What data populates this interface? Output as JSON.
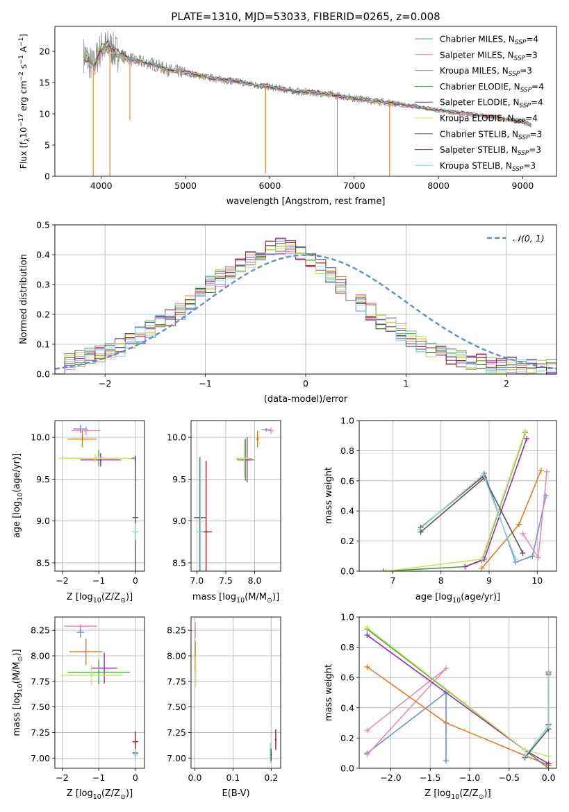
{
  "figure": {
    "title": "PLATE=1310, MJD=53033, FIBERID=0265, z=0.008"
  },
  "palette": {
    "Chabrier MILES": "#6a8fd8",
    "Salpeter MILES": "#e58ab8",
    "Kroupa MILES": "#b8a040",
    "Chabrier ELODIE": "#4d9a4d",
    "Salpeter ELODIE": "#8e2fae",
    "Kroupa ELODIE": "#cbe65a",
    "Chabrier STELIB": "#555555",
    "Salpeter STELIB": "#a31f2a",
    "Kroupa STELIB": "#85d6d6",
    "orange": "#e07b20",
    "gauss": "#5b8dd6"
  },
  "chart_data": [
    {
      "id": "spectrum",
      "type": "line",
      "title": "PLATE=1310, MJD=53033, FIBERID=0265, z=0.008",
      "xlabel": "wavelength [Angstrom, rest frame]",
      "ylabel_main": "Flux [f",
      "ylabel_sub": "λ",
      "ylabel_tail": "10",
      "ylabel_exp1": "−17",
      "ylabel_mid": " erg cm",
      "ylabel_exp2": "−2",
      "ylabel_mid2": " s",
      "ylabel_exp3": "−1",
      "ylabel_end": " A",
      "ylabel_exp4": "−1",
      "ylabel_close": "]",
      "xlim": [
        3450,
        9400
      ],
      "ylim": [
        0,
        24
      ],
      "xticks": [
        4000,
        5000,
        6000,
        7000,
        8000,
        9000
      ],
      "yticks": [
        0,
        5,
        10,
        15,
        20
      ],
      "legend_position": "upper right",
      "legend": [
        {
          "name": "Chabrier MILES",
          "n": "4"
        },
        {
          "name": "Salpeter MILES",
          "n": "3"
        },
        {
          "name": "Kroupa MILES",
          "n": "3"
        },
        {
          "name": "Chabrier ELODIE",
          "n": "4"
        },
        {
          "name": "Salpeter ELODIE",
          "n": "4"
        },
        {
          "name": "Kroupa ELODIE",
          "n": "4"
        },
        {
          "name": "Chabrier STELIB",
          "n": "3"
        },
        {
          "name": "Salpeter STELIB",
          "n": "3"
        },
        {
          "name": "Kroupa STELIB",
          "n": "3"
        }
      ],
      "legend_label_prefix": "N",
      "legend_label_sub": "SSP",
      "continuum": {
        "x": [
          3800,
          3900,
          4000,
          4100,
          4200,
          4400,
          4600,
          4800,
          5000,
          5200,
          5400,
          5600,
          5800,
          6000,
          6300,
          6600,
          7000,
          7400,
          7800,
          8200,
          8600,
          9000,
          9100
        ],
        "y": [
          19.5,
          17.5,
          20.5,
          20.8,
          19.5,
          18.5,
          18.0,
          17.0,
          16.6,
          16.0,
          15.5,
          15.2,
          14.7,
          14.3,
          13.6,
          13.3,
          12.5,
          11.8,
          11.0,
          10.2,
          9.6,
          8.7,
          8.2
        ]
      },
      "absorption_lines": [
        {
          "x": 3905,
          "depth_to": 0
        },
        {
          "x": 4102,
          "depth_to": 0
        },
        {
          "x": 4340,
          "depth_to": 9
        },
        {
          "x": 5950,
          "depth_to": 0.5
        },
        {
          "x": 6800,
          "depth_to": 0
        },
        {
          "x": 7420,
          "depth_to": 0
        }
      ]
    },
    {
      "id": "residuals",
      "type": "line",
      "xlabel": "(data-model)/error",
      "ylabel": "Normed distribution",
      "xlim": [
        -2.5,
        2.5
      ],
      "ylim": [
        0,
        0.5
      ],
      "xticks": [
        -2,
        -1,
        0,
        1,
        2
      ],
      "yticks": [
        0.0,
        0.1,
        0.2,
        0.3,
        0.4,
        0.5
      ],
      "grid": true,
      "legend_position": "upper right",
      "legend_label": "𝒩(0, 1)",
      "bin_width": 0.1,
      "histogram_ref": [
        0.03,
        0.04,
        0.05,
        0.06,
        0.07,
        0.08,
        0.09,
        0.11,
        0.13,
        0.15,
        0.17,
        0.19,
        0.21,
        0.24,
        0.27,
        0.3,
        0.32,
        0.34,
        0.36,
        0.38,
        0.4,
        0.42,
        0.43,
        0.42,
        0.4,
        0.38,
        0.36,
        0.33,
        0.3,
        0.27,
        0.24,
        0.21,
        0.18,
        0.16,
        0.14,
        0.12,
        0.1,
        0.08,
        0.07,
        0.06,
        0.05,
        0.04,
        0.04,
        0.03,
        0.03,
        0.03,
        0.02,
        0.02,
        0.02,
        0.02
      ]
    },
    {
      "id": "age_vs_Z",
      "type": "scatter",
      "xlabel": "Z [log",
      "xlabel_sub": "10",
      "xlabel_rest": "(Z/Z",
      "xlabel_sun": "⊙",
      "xlabel_end": ")]",
      "ylabel": "age  [log",
      "ylabel_sub": "10",
      "ylabel_rest": "(age/yr)]",
      "xlim": [
        -2.2,
        0.25
      ],
      "ylim": [
        8.4,
        10.2
      ],
      "xticks": [
        -2,
        -1,
        0
      ],
      "yticks": [
        8.5,
        9.0,
        9.5,
        10.0
      ],
      "grid": true,
      "points": [
        {
          "color": "#6a8fd8",
          "x": -1.5,
          "y": 10.1,
          "xerr": 0.2,
          "yerr": 0.05
        },
        {
          "color": "#e58ab8",
          "x": -1.35,
          "y": 10.08,
          "xerr": 0.4,
          "yerr": 0.05
        },
        {
          "color": "#e07b20",
          "x": -1.45,
          "y": 9.98,
          "xerr": 0.4,
          "yerr": 0.1
        },
        {
          "color": "#4d9a4d",
          "x": -1.0,
          "y": 9.75,
          "xerr": 1.0,
          "yerr": 0.1
        },
        {
          "color": "#8e2fae",
          "x": -0.95,
          "y": 9.73,
          "xerr": 0.55,
          "yerr": 0.08
        },
        {
          "color": "#cbe65a",
          "x": -1.1,
          "y": 9.75,
          "xerr": 1.0,
          "yerr": 0.05
        },
        {
          "color": "#555555",
          "x": 0.0,
          "y": 9.04,
          "xerr": 0.08,
          "yerr": 0.72
        },
        {
          "color": "#85d6d6",
          "x": 0.0,
          "y": 8.87,
          "xerr": 0.08,
          "yerr": 0.1
        },
        {
          "color": "#555555",
          "x": 0.0,
          "y": 9.73,
          "xerr": 0.0,
          "yerr": 0.05
        }
      ]
    },
    {
      "id": "age_vs_mass",
      "type": "scatter",
      "xlabel": "mass [log",
      "xlabel_sub": "10",
      "xlabel_rest": "(M/M",
      "xlabel_sun": "⊙",
      "xlabel_end": ")]",
      "xlim": [
        6.9,
        8.45
      ],
      "ylim": [
        8.4,
        10.2
      ],
      "xticks": [
        7.0,
        7.5,
        8.0
      ],
      "yticks": [
        8.5,
        9.0,
        9.5,
        10.0
      ],
      "grid": true,
      "points": [
        {
          "color": "#6a8fd8",
          "x": 8.2,
          "y": 10.09,
          "xerr": 0.08,
          "yerr": 0.02
        },
        {
          "color": "#e58ab8",
          "x": 8.28,
          "y": 10.08,
          "xerr": 0.05,
          "yerr": 0.04
        },
        {
          "color": "#e07b20",
          "x": 8.05,
          "y": 9.98,
          "xerr": 0.03,
          "yerr": 0.1
        },
        {
          "color": "#4d9a4d",
          "x": 7.84,
          "y": 9.73,
          "xerr": 0.15,
          "yerr": 0.25
        },
        {
          "color": "#8e2fae",
          "x": 7.87,
          "y": 9.73,
          "xerr": 0.1,
          "yerr": 0.27
        },
        {
          "color": "#cbe65a",
          "x": 7.82,
          "y": 9.75,
          "xerr": 0.14,
          "yerr": 0.23
        },
        {
          "color": "#555555",
          "x": 7.05,
          "y": 9.04,
          "xerr": 0.1,
          "yerr": 0.72
        },
        {
          "color": "#a31f2a",
          "x": 7.16,
          "y": 8.87,
          "xerr": 0.1,
          "yerr": 0.85
        },
        {
          "color": "#85d6d6",
          "x": 7.06,
          "y": 8.87,
          "xerr": 0.05,
          "yerr": 0.9
        }
      ]
    },
    {
      "id": "massweight_vs_age",
      "type": "line",
      "xlabel": "age  [log",
      "xlabel_sub": "10",
      "xlabel_rest": "(age/yr)]",
      "ylabel": "mass weight",
      "xlim": [
        6.3,
        10.4
      ],
      "ylim": [
        0,
        1.0
      ],
      "xticks": [
        7,
        8,
        9,
        10
      ],
      "yticks": [
        0.0,
        0.2,
        0.4,
        0.6,
        0.8,
        1.0
      ],
      "grid": true,
      "series": [
        {
          "color": "#6a8fd8",
          "x": [
            8.9,
            9.55,
            9.9,
            10.18
          ],
          "y": [
            0.65,
            0.06,
            0.1,
            0.5
          ]
        },
        {
          "color": "#e58ab8",
          "x": [
            9.7,
            10.02,
            10.2
          ],
          "y": [
            0.25,
            0.09,
            0.66
          ]
        },
        {
          "color": "#e07b20",
          "x": [
            8.85,
            9.62,
            10.08
          ],
          "y": [
            0.02,
            0.31,
            0.67
          ]
        },
        {
          "color": "#4d9a4d",
          "x": [
            6.8,
            8.5,
            8.85,
            9.75
          ],
          "y": [
            0.0,
            0.03,
            0.07,
            0.92
          ]
        },
        {
          "color": "#8e2fae",
          "x": [
            8.5,
            8.9,
            9.78
          ],
          "y": [
            0.03,
            0.08,
            0.88
          ]
        },
        {
          "color": "#cbe65a",
          "x": [
            6.85,
            8.85,
            9.75
          ],
          "y": [
            0.0,
            0.08,
            0.93
          ]
        },
        {
          "color": "#555555",
          "x": [
            7.58,
            8.9,
            9.7
          ],
          "y": [
            0.26,
            0.62,
            0.12
          ]
        },
        {
          "color": "#a31f2a",
          "x": [
            7.58,
            8.88
          ],
          "y": [
            0.29,
            0.63
          ]
        },
        {
          "color": "#85d6d6",
          "x": [
            7.56,
            8.88,
            9.55
          ],
          "y": [
            0.28,
            0.64,
            0.08
          ]
        }
      ]
    },
    {
      "id": "mass_vs_Z",
      "type": "scatter",
      "xlabel": "Z [log",
      "xlabel_sub": "10",
      "xlabel_rest": "(Z/Z",
      "xlabel_sun": "⊙",
      "xlabel_end": ")]",
      "ylabel": "mass [log",
      "ylabel_sub": "10",
      "ylabel_rest": "(M/M",
      "ylabel_sun": "⊙",
      "ylabel_end": ")]",
      "xlim": [
        -2.2,
        0.25
      ],
      "ylim": [
        6.9,
        8.38
      ],
      "xticks": [
        -2,
        -1,
        0
      ],
      "yticks": [
        7.0,
        7.25,
        7.5,
        7.75,
        8.0,
        8.25
      ],
      "ytick_labels": [
        "7.00",
        "7.25",
        "7.50",
        "7.75",
        "8.00",
        "8.25"
      ],
      "grid": true,
      "points": [
        {
          "color": "#e58ab8",
          "x": -1.5,
          "y": 8.29,
          "xerr": 0.45,
          "yerr": 0.02
        },
        {
          "color": "#6a8fd8",
          "x": -1.5,
          "y": 8.23,
          "xerr": 0.1,
          "yerr": 0.05
        },
        {
          "color": "#e07b20",
          "x": -1.35,
          "y": 8.04,
          "xerr": 0.45,
          "yerr": 0.13
        },
        {
          "color": "#8e2fae",
          "x": -0.85,
          "y": 7.88,
          "xerr": 0.35,
          "yerr": 0.15
        },
        {
          "color": "#4d9a4d",
          "x": -1.0,
          "y": 7.84,
          "xerr": 0.85,
          "yerr": 0.12
        },
        {
          "color": "#cbe65a",
          "x": -1.2,
          "y": 7.81,
          "xerr": 0.85,
          "yerr": 0.1
        },
        {
          "color": "#a31f2a",
          "x": 0.0,
          "y": 7.16,
          "xerr": 0.08,
          "yerr": 0.1
        },
        {
          "color": "#555555",
          "x": 0.0,
          "y": 7.05,
          "xerr": 0.08,
          "yerr": 0.05
        },
        {
          "color": "#85d6d6",
          "x": 0.0,
          "y": 7.03,
          "xerr": 0.05,
          "yerr": 0.06
        }
      ]
    },
    {
      "id": "mass_vs_ebv",
      "type": "scatter",
      "xlabel": "E(B-V)",
      "xlim": [
        -0.01,
        0.225
      ],
      "ylim": [
        6.9,
        8.38
      ],
      "xticks": [
        0.0,
        0.1,
        0.2
      ],
      "yticks": [
        7.0,
        7.25,
        7.5,
        7.75,
        8.0,
        8.25
      ],
      "ytick_labels": [
        "7.00",
        "7.25",
        "7.50",
        "7.75",
        "8.00",
        "8.25"
      ],
      "grid": true,
      "points": [
        {
          "color": "#e58ab8",
          "x": 0.001,
          "y": 8.25,
          "xerr": 0.0,
          "yerr": 0.08
        },
        {
          "color": "#e07b20",
          "x": 0.001,
          "y": 8.0,
          "xerr": 0.0,
          "yerr": 0.15
        },
        {
          "color": "#cbe65a",
          "x": 0.002,
          "y": 7.85,
          "xerr": 0.0,
          "yerr": 0.15
        },
        {
          "color": "#a31f2a",
          "x": 0.212,
          "y": 7.18,
          "xerr": 0.0,
          "yerr": 0.1
        },
        {
          "color": "#85d6d6",
          "x": 0.198,
          "y": 7.05,
          "xerr": 0.0,
          "yerr": 0.1
        },
        {
          "color": "#555555",
          "x": 0.2,
          "y": 7.03,
          "xerr": 0.0,
          "yerr": 0.06
        }
      ]
    },
    {
      "id": "massweight_vs_Z",
      "type": "line",
      "xlabel": "Z [log",
      "xlabel_sub": "10",
      "xlabel_rest": "(Z/Z",
      "xlabel_sun": "⊙",
      "xlabel_end": ")]",
      "ylabel": "mass weight",
      "xlim": [
        -2.4,
        0.1
      ],
      "ylim": [
        0,
        1.0
      ],
      "xticks": [
        -2.0,
        -1.5,
        -1.0,
        -0.5,
        0.0
      ],
      "yticks": [
        0.0,
        0.2,
        0.4,
        0.6,
        0.8,
        1.0
      ],
      "xtick_labels": [
        "−2.0",
        "−1.5",
        "−1.0",
        "−0.5",
        "0.0"
      ],
      "grid": true,
      "series": [
        {
          "color": "#6a8fd8",
          "x": [
            -2.3,
            -1.3,
            -1.3
          ],
          "y": [
            0.1,
            0.5,
            0.05
          ]
        },
        {
          "color": "#e58ab8",
          "x": [
            -2.3,
            -1.3,
            -2.3
          ],
          "y": [
            0.25,
            0.66,
            0.09
          ]
        },
        {
          "color": "#e07b20",
          "x": [
            -2.3,
            -1.3,
            0.0
          ],
          "y": [
            0.67,
            0.3,
            0.02
          ]
        },
        {
          "color": "#4d9a4d",
          "x": [
            -2.3,
            -0.3,
            0.0
          ],
          "y": [
            0.92,
            0.12,
            0.0
          ]
        },
        {
          "color": "#8e2fae",
          "x": [
            -2.3,
            -0.3,
            0.0
          ],
          "y": [
            0.88,
            0.12,
            0.03
          ]
        },
        {
          "color": "#cbe65a",
          "x": [
            -2.3,
            -0.3,
            0.0
          ],
          "y": [
            0.93,
            0.12,
            0.08
          ]
        },
        {
          "color": "#555555",
          "x": [
            -0.3,
            0.0,
            0.0
          ],
          "y": [
            0.07,
            0.26,
            0.62
          ]
        },
        {
          "color": "#a31f2a",
          "x": [
            0.0,
            0.0
          ],
          "y": [
            0.29,
            0.63
          ]
        },
        {
          "color": "#85d6d6",
          "x": [
            -0.3,
            0.0,
            0.0
          ],
          "y": [
            0.08,
            0.28,
            0.64
          ]
        }
      ]
    }
  ]
}
